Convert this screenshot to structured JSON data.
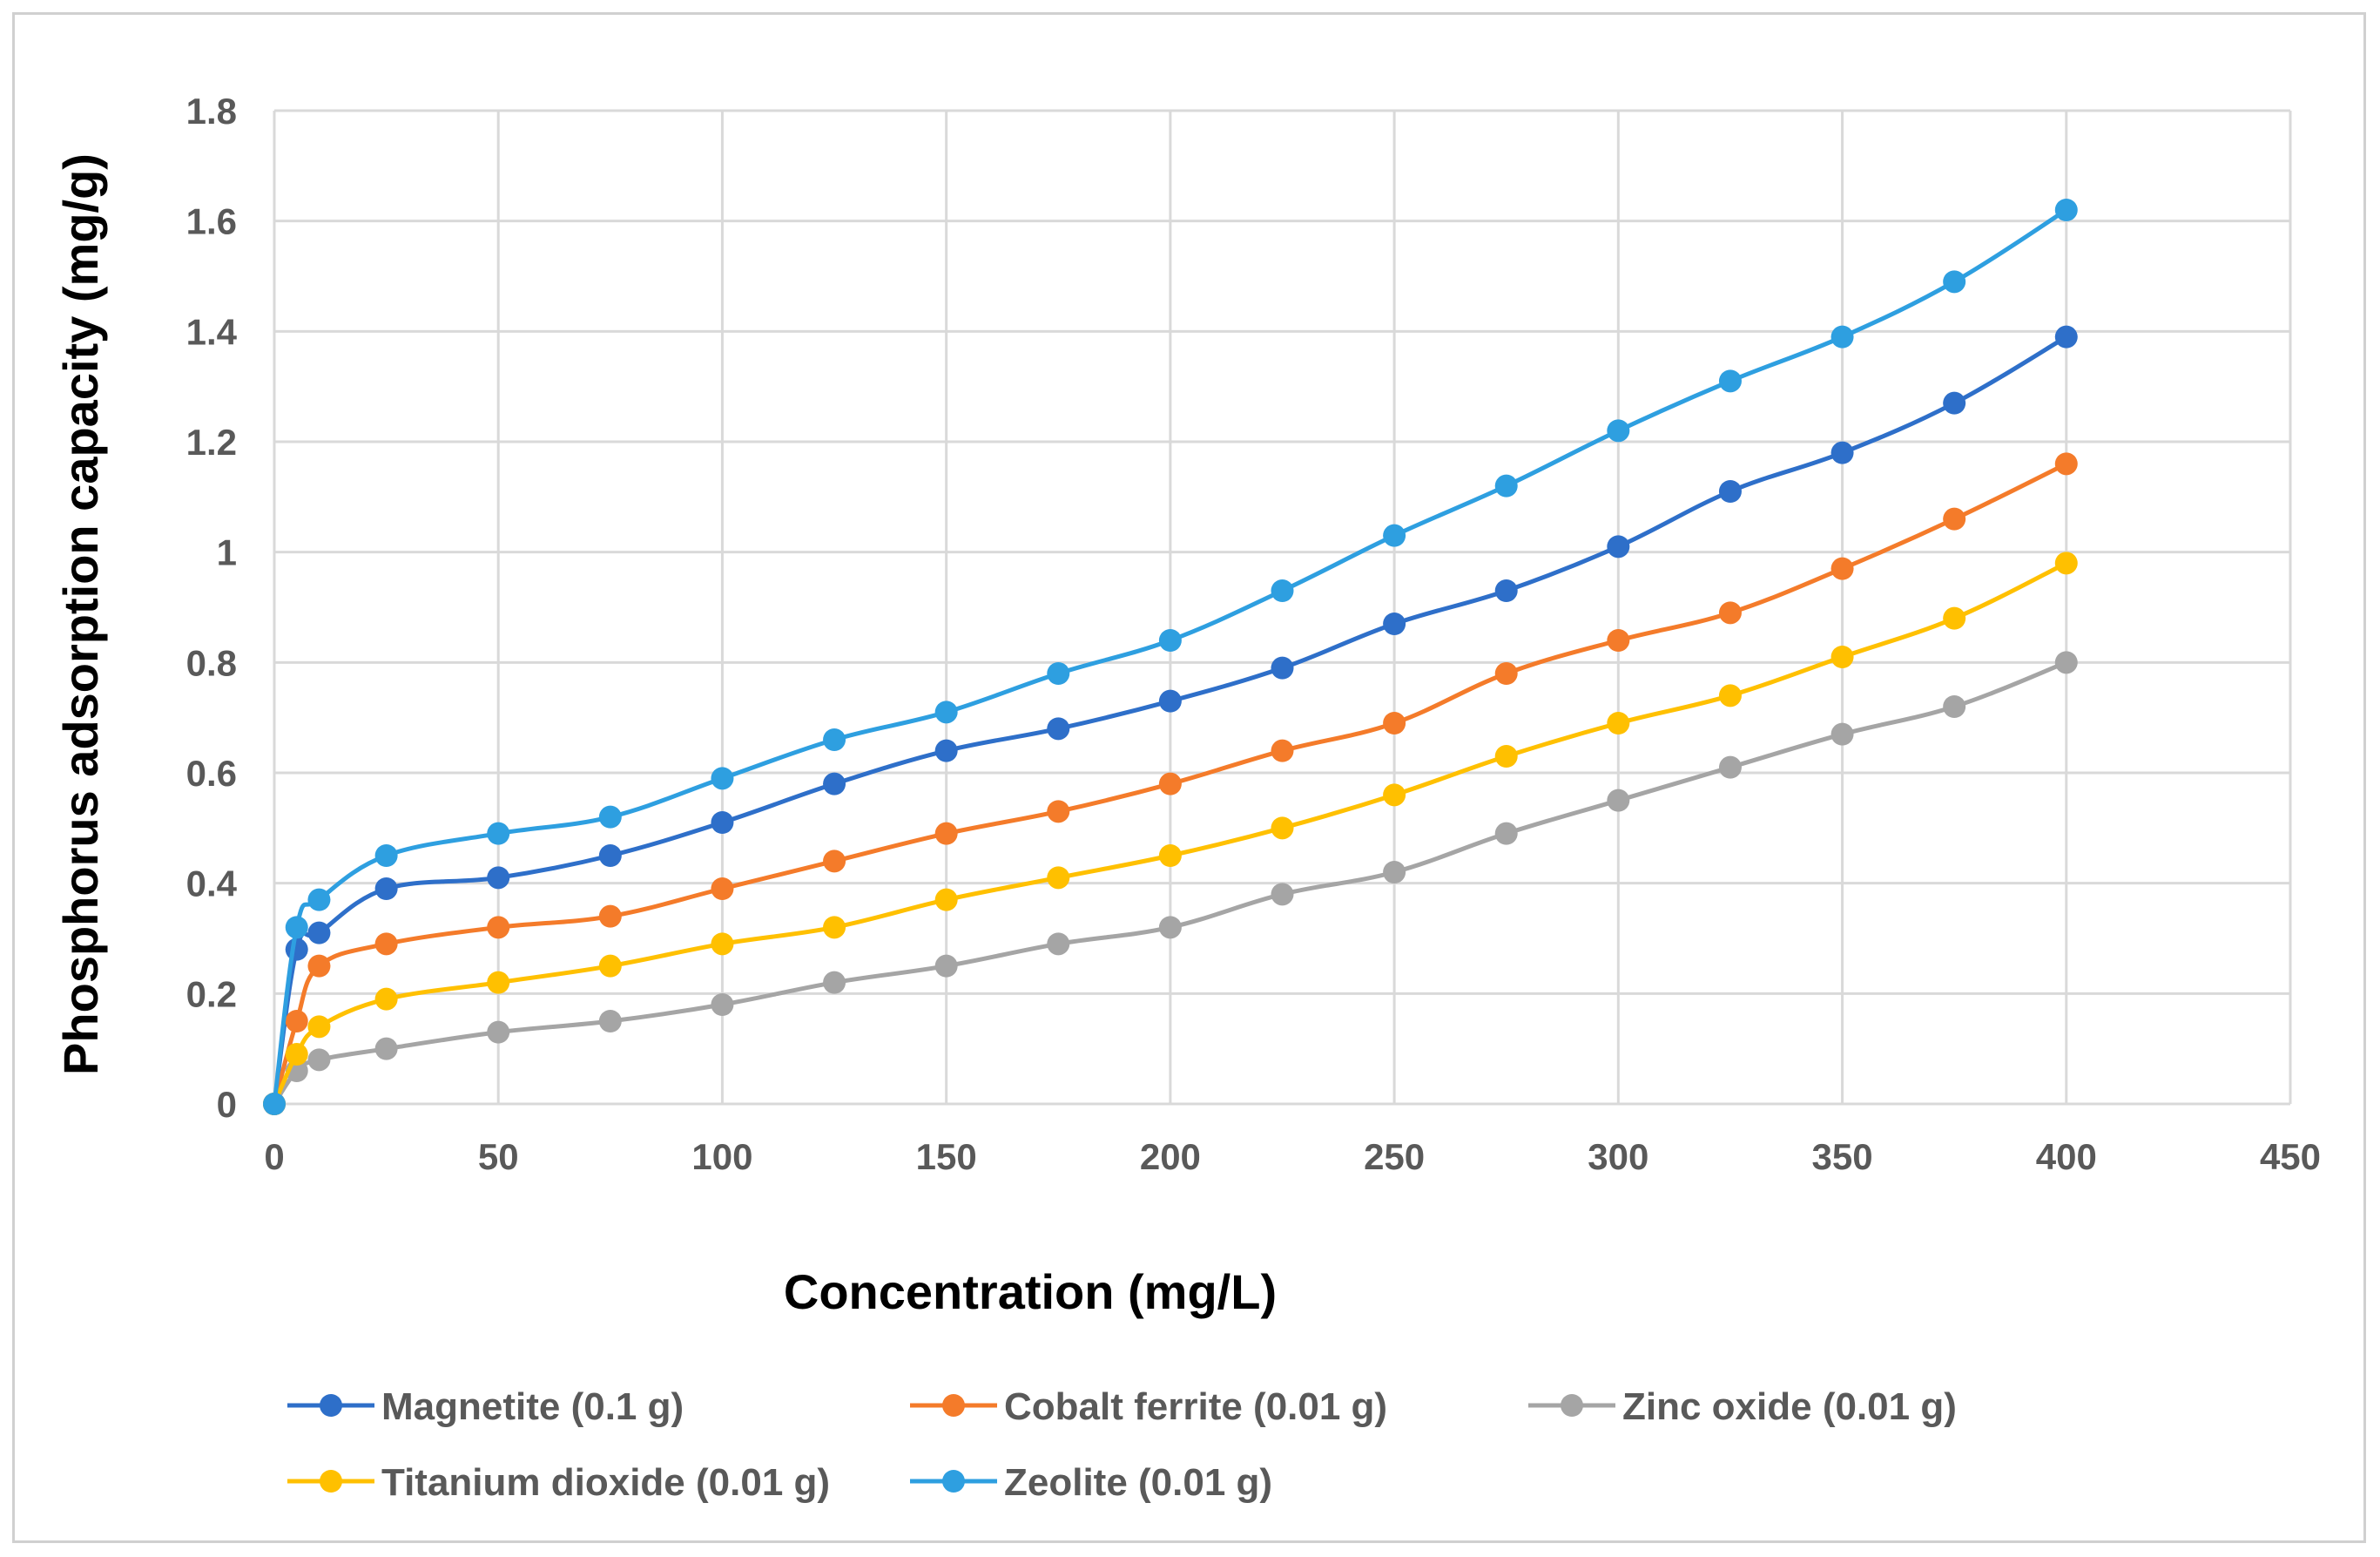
{
  "chart_data": {
    "type": "line",
    "title": "",
    "xlabel": "Concentration (mg/L)",
    "ylabel": "Phosphorus adsorption capacity (mg/g)",
    "xlim": [
      0,
      450
    ],
    "ylim": [
      0,
      1.8
    ],
    "x_ticks": [
      "0",
      "50",
      "100",
      "150",
      "200",
      "250",
      "300",
      "350",
      "400",
      "450"
    ],
    "y_ticks": [
      "0",
      "0.2",
      "0.4",
      "0.6",
      "0.8",
      "1",
      "1.2",
      "1.4",
      "1.6",
      "1.8"
    ],
    "grid": true,
    "legend_position": "bottom",
    "x": [
      0,
      5,
      10,
      25,
      50,
      75,
      100,
      125,
      150,
      175,
      200,
      225,
      250,
      275,
      300,
      325,
      350,
      375,
      400
    ],
    "series": [
      {
        "name": "Magnetite (0.1 g)",
        "color": "#2E6FC9",
        "values": [
          0,
          0.28,
          0.31,
          0.39,
          0.41,
          0.45,
          0.51,
          0.58,
          0.64,
          0.68,
          0.73,
          0.79,
          0.87,
          0.93,
          1.01,
          1.11,
          1.18,
          1.27,
          1.39
        ]
      },
      {
        "name": "Cobalt ferrite (0.01 g)",
        "color": "#F47B2A",
        "values": [
          0,
          0.15,
          0.25,
          0.29,
          0.32,
          0.34,
          0.39,
          0.44,
          0.49,
          0.53,
          0.58,
          0.64,
          0.69,
          0.78,
          0.84,
          0.89,
          0.97,
          1.06,
          1.16
        ]
      },
      {
        "name": "Zinc oxide (0.01 g)",
        "color": "#A5A5A5",
        "values": [
          0,
          0.06,
          0.08,
          0.1,
          0.13,
          0.15,
          0.18,
          0.22,
          0.25,
          0.29,
          0.32,
          0.38,
          0.42,
          0.49,
          0.55,
          0.61,
          0.67,
          0.72,
          0.8
        ]
      },
      {
        "name": "Titanium dioxide (0.01 g)",
        "color": "#FFC000",
        "values": [
          0,
          0.09,
          0.14,
          0.19,
          0.22,
          0.25,
          0.29,
          0.32,
          0.37,
          0.41,
          0.45,
          0.5,
          0.56,
          0.63,
          0.69,
          0.74,
          0.81,
          0.88,
          0.98
        ]
      },
      {
        "name": "Zeolite (0.01 g)",
        "color": "#2E9FE0",
        "values": [
          0,
          0.32,
          0.37,
          0.45,
          0.49,
          0.52,
          0.59,
          0.66,
          0.71,
          0.78,
          0.84,
          0.93,
          1.03,
          1.12,
          1.22,
          1.31,
          1.39,
          1.49,
          1.62
        ]
      }
    ]
  }
}
